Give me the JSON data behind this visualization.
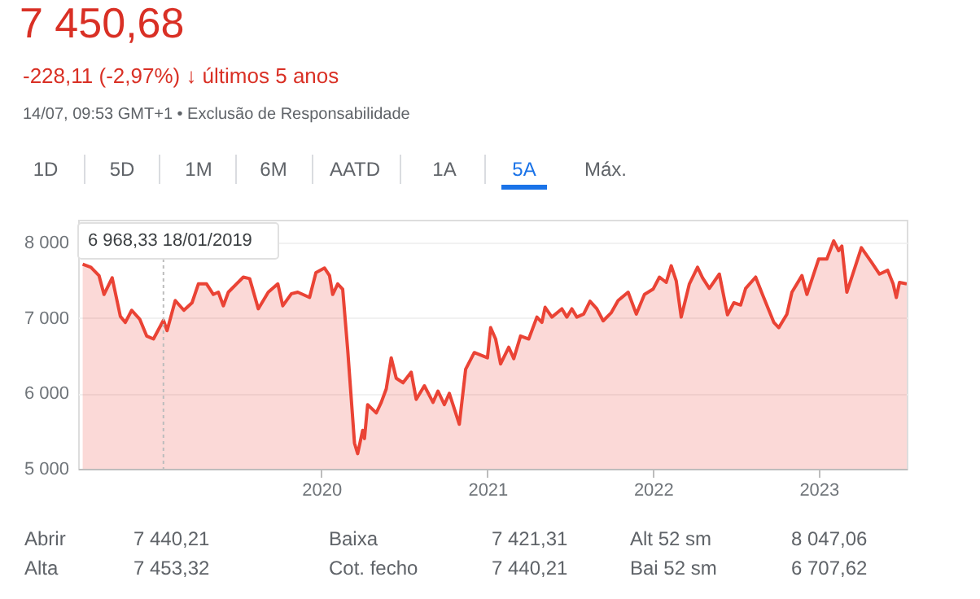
{
  "chart_data": {
    "type": "area",
    "title": "7 450,68",
    "subtitle": "-228,11 (-2,97%) ↓ últimos 5 anos",
    "annotations": [
      "14/07, 09:53 GMT+1 • Exclusão de Responsabilidade",
      "1D",
      "5D",
      "1M",
      "6M",
      "AATD",
      "1A",
      "5A",
      "Máx.",
      "Abrir",
      "7 440,21",
      "Baixa",
      "7 421,31",
      "Alt 52 sm",
      "8 047,06",
      "Alta",
      "7 453,32",
      "Cot. fecho",
      "7 440,21",
      "Bai 52 sm",
      "6 707,62"
    ],
    "x": [
      "2018-07-24",
      "2018-08-11",
      "2018-08-29",
      "2018-09-09",
      "2018-09-27",
      "2018-10-15",
      "2018-10-26",
      "2018-11-09",
      "2018-11-27",
      "2018-12-12",
      "2018-12-27",
      "2019-01-18",
      "2019-01-26",
      "2019-02-13",
      "2019-03-04",
      "2019-03-22",
      "2019-04-05",
      "2019-04-23",
      "2019-05-08",
      "2019-05-19",
      "2019-05-30",
      "2019-06-10",
      "2019-06-28",
      "2019-07-13",
      "2019-07-27",
      "2019-08-15",
      "2019-09-06",
      "2019-09-27",
      "2019-10-08",
      "2019-10-27",
      "2019-11-10",
      "2019-12-06",
      "2019-12-20",
      "2020-01-08",
      "2020-01-19",
      "2020-01-26",
      "2020-02-06",
      "2020-02-17",
      "2020-02-28",
      "2020-03-14",
      "2020-03-21",
      "2020-04-01",
      "2020-04-05",
      "2020-04-12",
      "2020-05-01",
      "2020-05-12",
      "2020-05-23",
      "2020-06-03",
      "2020-06-14",
      "2020-06-29",
      "2020-07-17",
      "2020-07-28",
      "2020-08-15",
      "2020-09-03",
      "2020-09-14",
      "2020-09-28",
      "2020-10-09",
      "2020-10-31",
      "2020-11-14",
      "2020-12-03",
      "2021-01-01",
      "2021-01-08",
      "2021-01-19",
      "2021-01-30",
      "2021-02-17",
      "2021-02-28",
      "2021-03-15",
      "2021-04-02",
      "2021-04-20",
      "2021-05-01",
      "2021-05-08",
      "2021-05-23",
      "2021-06-14",
      "2021-06-25",
      "2021-07-06",
      "2021-07-17",
      "2021-08-01",
      "2021-08-15",
      "2021-08-30",
      "2021-09-13",
      "2021-10-01",
      "2021-10-16",
      "2021-11-07",
      "2021-11-25",
      "2021-12-13",
      "2022-01-01",
      "2022-01-15",
      "2022-01-30",
      "2022-02-10",
      "2022-02-21",
      "2022-03-04",
      "2022-03-22",
      "2022-04-09",
      "2022-04-20",
      "2022-05-05",
      "2022-05-27",
      "2022-06-14",
      "2022-06-28",
      "2022-07-13",
      "2022-07-24",
      "2022-08-15",
      "2022-08-30",
      "2022-09-24",
      "2022-10-05",
      "2022-10-23",
      "2022-11-03",
      "2022-11-25",
      "2022-12-06",
      "2023-01-01",
      "2023-01-19",
      "2023-02-03",
      "2023-02-14",
      "2023-02-21",
      "2023-03-04",
      "2023-03-22",
      "2023-04-05",
      "2023-04-27",
      "2023-05-15",
      "2023-06-02",
      "2023-06-14",
      "2023-06-21",
      "2023-06-28",
      "2023-07-14"
    ],
    "series": [
      {
        "color": "#ea4335",
        "values": [
          7710,
          7670,
          7560,
          7310,
          7530,
          7020,
          6940,
          7100,
          6980,
          6760,
          6720,
          6968.33,
          6830,
          7230,
          7100,
          7200,
          7450,
          7450,
          7310,
          7340,
          7160,
          7340,
          7450,
          7540,
          7520,
          7120,
          7340,
          7450,
          7160,
          7320,
          7340,
          7270,
          7600,
          7660,
          7560,
          7310,
          7450,
          7380,
          6580,
          5340,
          5200,
          5510,
          5400,
          5850,
          5740,
          5880,
          6060,
          6470,
          6200,
          6140,
          6280,
          5920,
          6100,
          5880,
          6030,
          5850,
          6000,
          5590,
          6320,
          6540,
          6470,
          6870,
          6720,
          6390,
          6610,
          6460,
          6760,
          6720,
          7010,
          6940,
          7140,
          7010,
          7120,
          7010,
          7120,
          7010,
          7050,
          7220,
          7120,
          6960,
          7070,
          7230,
          7340,
          7050,
          7310,
          7380,
          7540,
          7470,
          7690,
          7490,
          7010,
          7450,
          7670,
          7530,
          7390,
          7580,
          7040,
          7200,
          7170,
          7390,
          7540,
          7310,
          6940,
          6870,
          7050,
          7340,
          7560,
          7310,
          7780,
          7780,
          8020,
          7890,
          7950,
          7340,
          7670,
          7930,
          7740,
          7580,
          7630,
          7450,
          7270,
          7470,
          7450.68
        ]
      }
    ],
    "xlim": [
      "2018-07-14",
      "2023-07-14"
    ],
    "xticks": [
      "2020",
      "2021",
      "2022",
      "2023"
    ],
    "ylim": [
      5000,
      8300
    ],
    "yticks": [
      {
        "value": 5000,
        "label": "5 000"
      },
      {
        "value": 6000,
        "label": "6 000"
      },
      {
        "value": 7000,
        "label": "7 000"
      },
      {
        "value": 8000,
        "label": "8 000"
      }
    ],
    "grid": "y",
    "ref_lines": [
      {
        "axis": "x",
        "value": "2019-01-18",
        "label": "6 968,33  18/01/2019",
        "line_style": "dotted",
        "color": "#bdbdbd"
      }
    ]
  }
}
